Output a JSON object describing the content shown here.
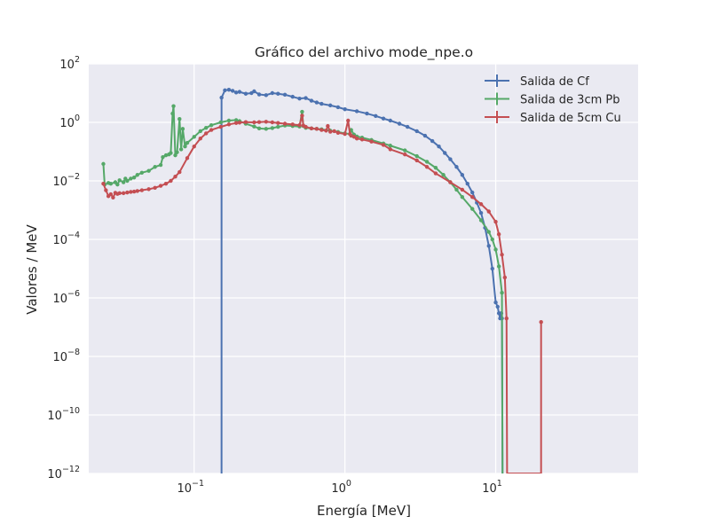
{
  "chart_data": {
    "type": "line",
    "title": "Gráfico del archivo mode_npe.o",
    "xlabel": "Energía [MeV]",
    "ylabel": "Valores / MeV",
    "x_scale": "log",
    "y_scale": "log",
    "xlim": [
      0.02,
      88
    ],
    "ylim": [
      1e-12,
      100
    ],
    "grid": true,
    "legend_position": "top-right",
    "x_ticks": [
      {
        "value": 0.1,
        "base": "10",
        "exp": "−1"
      },
      {
        "value": 1,
        "base": "10",
        "exp": "0"
      },
      {
        "value": 10,
        "base": "10",
        "exp": "1"
      }
    ],
    "y_ticks": [
      {
        "value": 100,
        "base": "10",
        "exp": "2"
      },
      {
        "value": 1,
        "base": "10",
        "exp": "0"
      },
      {
        "value": 0.01,
        "base": "10",
        "exp": "−2"
      },
      {
        "value": 0.0001,
        "base": "10",
        "exp": "−4"
      },
      {
        "value": 1e-06,
        "base": "10",
        "exp": "−6"
      },
      {
        "value": 1e-08,
        "base": "10",
        "exp": "−8"
      },
      {
        "value": 1e-10,
        "base": "10",
        "exp": "−10"
      },
      {
        "value": 1e-12,
        "base": "10",
        "exp": "−12"
      }
    ],
    "series": [
      {
        "name": "Salida de Cf",
        "color": "#4c72b0",
        "x": [
          0.152,
          0.152,
          0.16,
          0.17,
          0.18,
          0.19,
          0.2,
          0.22,
          0.24,
          0.25,
          0.27,
          0.3,
          0.33,
          0.36,
          0.4,
          0.45,
          0.5,
          0.55,
          0.6,
          0.65,
          0.7,
          0.8,
          0.9,
          1.0,
          1.2,
          1.4,
          1.6,
          1.8,
          2.0,
          2.3,
          2.6,
          3.0,
          3.4,
          3.8,
          4.2,
          4.6,
          5.0,
          5.5,
          6.0,
          6.5,
          7.0,
          7.5,
          8.0,
          8.5,
          9.0,
          9.5,
          10.0,
          10.3,
          10.5,
          10.7,
          10.9,
          11.0,
          11.1,
          11.2
        ],
        "y": [
          1e-12,
          7.0,
          12.5,
          13.0,
          12.0,
          10.5,
          11.0,
          9.5,
          10.0,
          11.5,
          9.0,
          8.5,
          10.0,
          9.5,
          8.8,
          7.5,
          6.5,
          6.8,
          5.5,
          4.8,
          4.3,
          3.8,
          3.3,
          2.8,
          2.4,
          2.0,
          1.65,
          1.35,
          1.15,
          0.9,
          0.7,
          0.5,
          0.35,
          0.23,
          0.15,
          0.09,
          0.055,
          0.03,
          0.016,
          0.008,
          0.004,
          0.0018,
          0.0008,
          0.00025,
          6e-05,
          1e-05,
          7e-07,
          5e-07,
          3e-07,
          2e-07,
          3e-07,
          2e-07,
          1e-12,
          1e-12
        ]
      },
      {
        "name": "Salida de 3cm Pb",
        "color": "#55a868",
        "x": [
          0.025,
          0.0255,
          0.027,
          0.028,
          0.03,
          0.031,
          0.032,
          0.034,
          0.035,
          0.036,
          0.038,
          0.04,
          0.042,
          0.045,
          0.05,
          0.055,
          0.06,
          0.062,
          0.065,
          0.068,
          0.07,
          0.072,
          0.073,
          0.075,
          0.077,
          0.08,
          0.082,
          0.084,
          0.087,
          0.09,
          0.1,
          0.11,
          0.12,
          0.13,
          0.15,
          0.17,
          0.19,
          0.2,
          0.22,
          0.25,
          0.27,
          0.3,
          0.33,
          0.36,
          0.4,
          0.45,
          0.5,
          0.52,
          0.53,
          0.55,
          0.6,
          0.65,
          0.7,
          0.8,
          0.9,
          1.0,
          1.08,
          1.1,
          1.15,
          1.2,
          1.3,
          1.5,
          1.8,
          2.0,
          2.5,
          3.0,
          3.5,
          4.0,
          4.5,
          5.0,
          5.5,
          6.0,
          7.0,
          8.0,
          9.0,
          9.5,
          10.0,
          10.5,
          11.0,
          11.1,
          11.2
        ],
        "y": [
          0.038,
          0.0075,
          0.0085,
          0.008,
          0.009,
          0.0075,
          0.0105,
          0.009,
          0.012,
          0.01,
          0.012,
          0.013,
          0.016,
          0.019,
          0.022,
          0.03,
          0.035,
          0.065,
          0.075,
          0.08,
          0.09,
          2.0,
          3.6,
          0.075,
          0.095,
          1.3,
          0.12,
          0.6,
          0.15,
          0.2,
          0.32,
          0.5,
          0.65,
          0.8,
          1.0,
          1.15,
          1.2,
          1.1,
          0.9,
          0.72,
          0.62,
          0.6,
          0.64,
          0.7,
          0.78,
          0.75,
          0.72,
          2.3,
          0.75,
          0.65,
          0.62,
          0.6,
          0.58,
          0.52,
          0.47,
          0.42,
          0.4,
          0.55,
          0.38,
          0.33,
          0.3,
          0.25,
          0.19,
          0.16,
          0.11,
          0.07,
          0.045,
          0.028,
          0.016,
          0.009,
          0.005,
          0.0028,
          0.0011,
          0.00045,
          0.00018,
          0.0001,
          4.5e-05,
          1.2e-05,
          1.5e-06,
          1e-12,
          1e-12
        ]
      },
      {
        "name": "Salida de 5cm Cu",
        "color": "#c44e52",
        "x": [
          0.025,
          0.026,
          0.027,
          0.028,
          0.029,
          0.03,
          0.031,
          0.032,
          0.034,
          0.036,
          0.038,
          0.04,
          0.042,
          0.045,
          0.05,
          0.055,
          0.06,
          0.065,
          0.07,
          0.075,
          0.08,
          0.09,
          0.1,
          0.11,
          0.12,
          0.13,
          0.15,
          0.17,
          0.19,
          0.2,
          0.22,
          0.25,
          0.27,
          0.3,
          0.33,
          0.36,
          0.4,
          0.45,
          0.5,
          0.52,
          0.53,
          0.55,
          0.6,
          0.65,
          0.7,
          0.75,
          0.77,
          0.8,
          0.85,
          0.9,
          1.0,
          1.05,
          1.08,
          1.1,
          1.15,
          1.2,
          1.3,
          1.5,
          1.8,
          2.0,
          2.5,
          3.0,
          3.5,
          4.0,
          5.0,
          6.0,
          7.0,
          8.0,
          9.0,
          10.0,
          10.5,
          11.0,
          11.5,
          11.8,
          11.9,
          12.0,
          20.0,
          20.0
        ],
        "y": [
          0.008,
          0.0048,
          0.003,
          0.0035,
          0.0027,
          0.0039,
          0.0036,
          0.0038,
          0.0038,
          0.004,
          0.0042,
          0.0043,
          0.0045,
          0.0048,
          0.0052,
          0.0058,
          0.0068,
          0.008,
          0.01,
          0.014,
          0.02,
          0.06,
          0.15,
          0.28,
          0.42,
          0.55,
          0.7,
          0.85,
          0.95,
          0.98,
          1.02,
          1.0,
          1.02,
          1.05,
          1.0,
          0.95,
          0.9,
          0.85,
          0.8,
          1.7,
          0.78,
          0.7,
          0.62,
          0.6,
          0.55,
          0.52,
          0.75,
          0.48,
          0.5,
          0.44,
          0.4,
          1.15,
          0.4,
          0.35,
          0.32,
          0.28,
          0.26,
          0.22,
          0.17,
          0.12,
          0.08,
          0.05,
          0.03,
          0.018,
          0.009,
          0.005,
          0.0028,
          0.0016,
          0.0009,
          0.0004,
          0.00015,
          3e-05,
          5e-06,
          2e-07,
          1e-12,
          1e-12,
          1e-12,
          1.5e-07
        ]
      }
    ]
  }
}
